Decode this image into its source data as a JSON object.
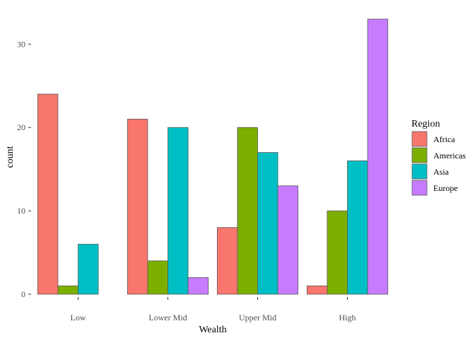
{
  "chart_data": {
    "type": "bar",
    "layout": "dodge",
    "categories": [
      "Low",
      "Lower Mid",
      "Upper Mid",
      "High"
    ],
    "series": [
      {
        "name": "Africa",
        "color": "#F8766D",
        "values": [
          24,
          21,
          8,
          1
        ]
      },
      {
        "name": "Americas",
        "color": "#7CAE00",
        "values": [
          1,
          4,
          20,
          10
        ]
      },
      {
        "name": "Asia",
        "color": "#00BFC4",
        "values": [
          6,
          20,
          17,
          16
        ]
      },
      {
        "name": "Europe",
        "color": "#C77CFF",
        "values": [
          0,
          2,
          13,
          33
        ]
      }
    ],
    "xlabel": "Wealth",
    "ylabel": "count",
    "ylim": [
      0,
      33
    ],
    "yticks": [
      0,
      10,
      20,
      30
    ],
    "legend": {
      "title": "Region",
      "position": "right"
    },
    "bar_outline": "#595959",
    "grid": false
  }
}
